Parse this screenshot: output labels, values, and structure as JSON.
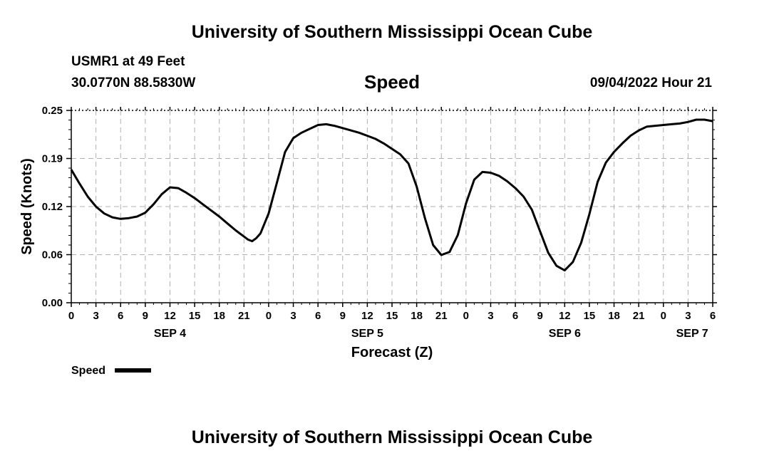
{
  "header": {
    "title": "University of Southern Mississippi Ocean Cube",
    "station": "USMR1 at 49 Feet",
    "coords": "30.0770N  88.5830W",
    "variable": "Speed",
    "datetime": "09/04/2022 Hour 21"
  },
  "footer": {
    "title": "University of Southern Mississippi Ocean Cube"
  },
  "colors": {
    "line": "#000000",
    "grid": "#b0b0b0"
  },
  "chart_data": {
    "type": "line",
    "title": "Speed",
    "ylabel": "Speed (Knots)",
    "xlabel": "Forecast (Z)",
    "ylim": [
      0,
      0.25
    ],
    "xlim": [
      0,
      78
    ],
    "x_unit": "hours since SEP 4 00Z",
    "grid": true,
    "y_ticks": [
      {
        "value": 0,
        "label": "0.00"
      },
      {
        "value": 0.0625,
        "label": "0.06"
      },
      {
        "value": 0.125,
        "label": "0.12"
      },
      {
        "value": 0.1875,
        "label": "0.19"
      },
      {
        "value": 0.25,
        "label": "0.25"
      }
    ],
    "x_ticks": [
      {
        "x": 0,
        "label": "0"
      },
      {
        "x": 3,
        "label": "3"
      },
      {
        "x": 6,
        "label": "6"
      },
      {
        "x": 9,
        "label": "9"
      },
      {
        "x": 12,
        "label": "12"
      },
      {
        "x": 15,
        "label": "15"
      },
      {
        "x": 18,
        "label": "18"
      },
      {
        "x": 21,
        "label": "21"
      },
      {
        "x": 24,
        "label": "0"
      },
      {
        "x": 27,
        "label": "3"
      },
      {
        "x": 30,
        "label": "6"
      },
      {
        "x": 33,
        "label": "9"
      },
      {
        "x": 36,
        "label": "12"
      },
      {
        "x": 39,
        "label": "15"
      },
      {
        "x": 42,
        "label": "18"
      },
      {
        "x": 45,
        "label": "21"
      },
      {
        "x": 48,
        "label": "0"
      },
      {
        "x": 51,
        "label": "3"
      },
      {
        "x": 54,
        "label": "6"
      },
      {
        "x": 57,
        "label": "9"
      },
      {
        "x": 60,
        "label": "12"
      },
      {
        "x": 63,
        "label": "15"
      },
      {
        "x": 66,
        "label": "18"
      },
      {
        "x": 69,
        "label": "21"
      },
      {
        "x": 72,
        "label": "0"
      },
      {
        "x": 75,
        "label": "3"
      },
      {
        "x": 78,
        "label": "6"
      }
    ],
    "date_labels": [
      {
        "x": 12,
        "label": "SEP 4"
      },
      {
        "x": 36,
        "label": "SEP 5"
      },
      {
        "x": 60,
        "label": "SEP 6"
      },
      {
        "x": 75.5,
        "label": "SEP 7"
      }
    ],
    "legend": {
      "label": "Speed",
      "position": "bottom-left"
    },
    "series": [
      {
        "name": "Speed",
        "x": [
          0,
          1,
          2,
          3,
          4,
          5,
          6,
          7,
          8,
          9,
          10,
          11,
          12,
          13,
          14,
          15,
          16,
          17,
          18,
          19,
          20,
          21,
          21.5,
          22,
          22.5,
          23,
          24,
          25,
          26,
          27,
          28,
          29,
          30,
          31,
          32,
          33,
          34,
          35,
          36,
          37,
          38,
          39,
          40,
          41,
          42,
          43,
          44,
          45,
          46,
          47,
          48,
          49,
          50,
          51,
          52,
          53,
          54,
          55,
          56,
          57,
          58,
          59,
          60,
          61,
          62,
          63,
          64,
          65,
          66,
          67,
          68,
          69,
          70,
          71,
          72,
          73,
          74,
          75,
          76,
          77,
          78
        ],
        "values": [
          0.173,
          0.155,
          0.138,
          0.125,
          0.116,
          0.111,
          0.109,
          0.11,
          0.112,
          0.117,
          0.128,
          0.141,
          0.15,
          0.149,
          0.143,
          0.136,
          0.128,
          0.12,
          0.112,
          0.103,
          0.094,
          0.086,
          0.082,
          0.08,
          0.084,
          0.09,
          0.116,
          0.156,
          0.196,
          0.214,
          0.221,
          0.226,
          0.231,
          0.232,
          0.23,
          0.227,
          0.224,
          0.221,
          0.217,
          0.213,
          0.207,
          0.2,
          0.193,
          0.181,
          0.151,
          0.11,
          0.075,
          0.062,
          0.066,
          0.088,
          0.129,
          0.16,
          0.17,
          0.169,
          0.165,
          0.158,
          0.149,
          0.138,
          0.121,
          0.093,
          0.065,
          0.048,
          0.042,
          0.053,
          0.078,
          0.115,
          0.157,
          0.182,
          0.196,
          0.207,
          0.217,
          0.224,
          0.229,
          0.23,
          0.231,
          0.232,
          0.233,
          0.235,
          0.238,
          0.238,
          0.236
        ]
      }
    ]
  }
}
